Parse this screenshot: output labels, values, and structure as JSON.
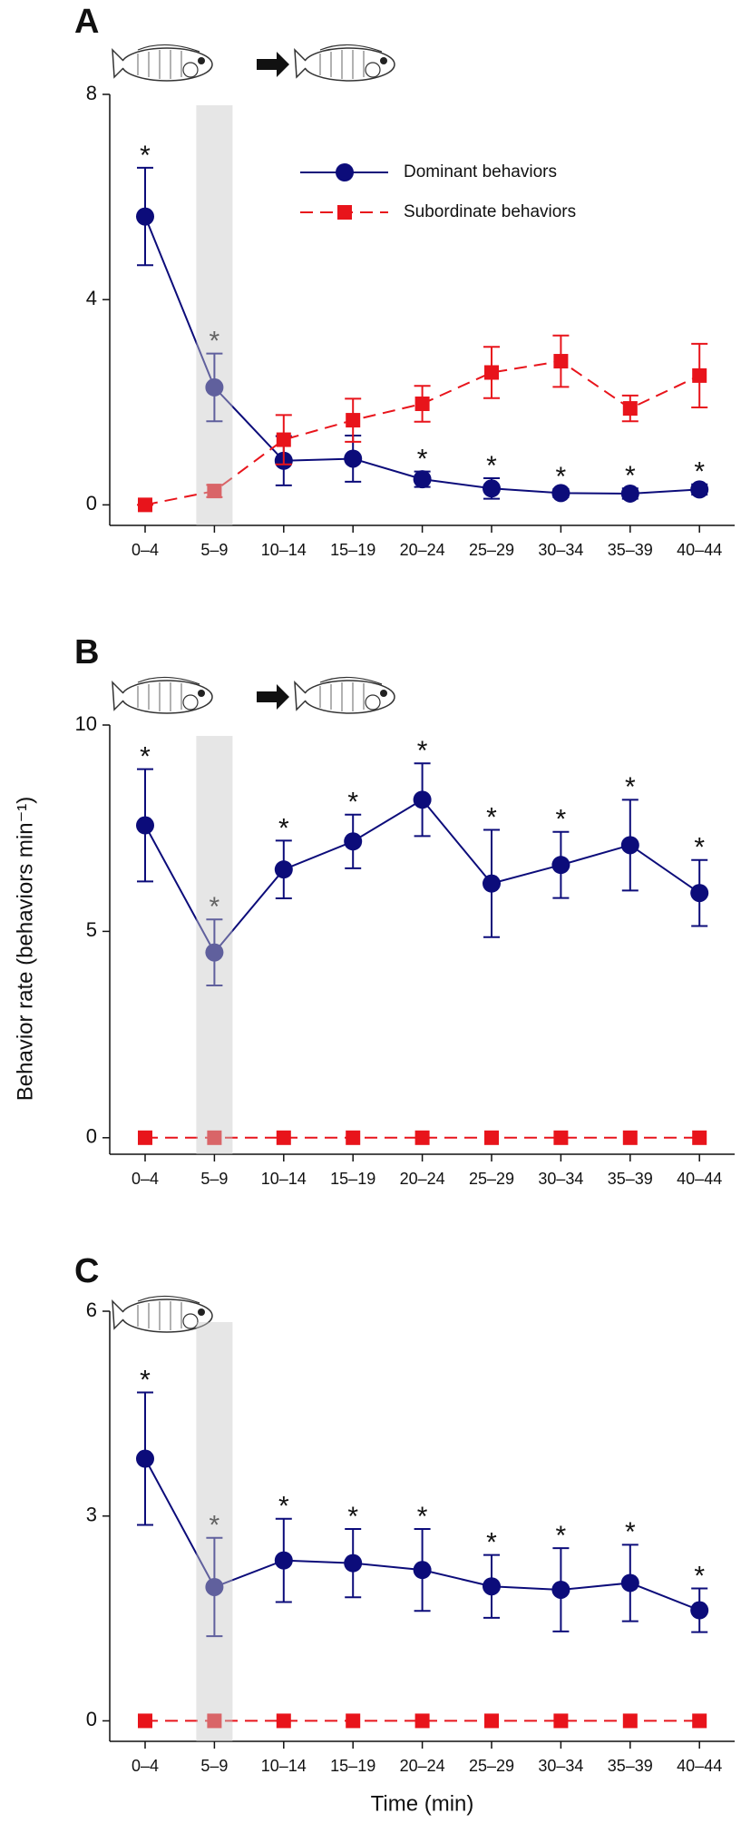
{
  "chart_data": [
    {
      "type": "line",
      "panel": "A",
      "categories": [
        "0–4",
        "5–9",
        "10–14",
        "15–19",
        "20–24",
        "25–29",
        "30–34",
        "35–39",
        "40–44"
      ],
      "shaded_category": 1,
      "ylim": [
        -0.4,
        8
      ],
      "yticks": [
        0,
        4,
        8
      ],
      "legend": "upper right",
      "series": [
        {
          "name": "Dominant behaviors",
          "color": "#0c0c7a",
          "marker": "circle",
          "linestyle": "solid",
          "values": [
            5.62,
            2.29,
            0.86,
            0.9,
            0.5,
            0.32,
            0.23,
            0.22,
            0.3
          ],
          "errors": [
            0.95,
            0.66,
            0.48,
            0.45,
            0.15,
            0.2,
            0.08,
            0.1,
            0.1
          ],
          "significance": [
            "*",
            "*",
            null,
            null,
            "*",
            "*",
            "*",
            "*",
            "*"
          ]
        },
        {
          "name": "Subordinate behaviors",
          "color": "#e8141b",
          "marker": "square",
          "linestyle": "dashed",
          "values": [
            0,
            0.27,
            1.27,
            1.65,
            1.97,
            2.58,
            2.8,
            1.88,
            2.52
          ],
          "errors": [
            0,
            0.12,
            0.48,
            0.42,
            0.35,
            0.5,
            0.5,
            0.25,
            0.62
          ]
        }
      ]
    },
    {
      "type": "line",
      "panel": "B",
      "categories": [
        "0–4",
        "5–9",
        "10–14",
        "15–19",
        "20–24",
        "25–29",
        "30–34",
        "35–39",
        "40–44"
      ],
      "shaded_category": 1,
      "ylim": [
        -0.4,
        10
      ],
      "yticks": [
        0,
        5,
        10
      ],
      "ylabel": "Behavior rate (behaviors min⁻¹)",
      "series": [
        {
          "color": "#0c0c7a",
          "marker": "circle",
          "linestyle": "solid",
          "values": [
            7.57,
            4.49,
            6.5,
            7.18,
            8.19,
            6.16,
            6.61,
            7.09,
            5.93
          ],
          "errors": [
            1.36,
            0.8,
            0.7,
            0.65,
            0.88,
            1.3,
            0.8,
            1.1,
            0.8
          ],
          "significance": [
            "*",
            "*",
            "*",
            "*",
            "*",
            "*",
            "*",
            "*",
            "*"
          ]
        },
        {
          "color": "#e8141b",
          "marker": "square",
          "linestyle": "dashed",
          "values": [
            0,
            0,
            0,
            0,
            0,
            0,
            0,
            0,
            0
          ]
        }
      ]
    },
    {
      "type": "line",
      "panel": "C",
      "categories": [
        "0–4",
        "5–9",
        "10–14",
        "15–19",
        "20–24",
        "25–29",
        "30–34",
        "35–39",
        "40–44"
      ],
      "shaded_category": 1,
      "ylim": [
        -0.3,
        6
      ],
      "yticks": [
        0,
        3,
        6
      ],
      "xlabel": "Time (min)",
      "series": [
        {
          "color": "#0c0c7a",
          "marker": "circle",
          "linestyle": "solid",
          "values": [
            3.84,
            1.96,
            2.35,
            2.31,
            2.21,
            1.97,
            1.92,
            2.02,
            1.62
          ],
          "errors": [
            0.97,
            0.72,
            0.61,
            0.5,
            0.6,
            0.46,
            0.61,
            0.56,
            0.32
          ],
          "significance": [
            "*",
            "*",
            "*",
            "*",
            "*",
            "*",
            "*",
            "*",
            "*"
          ]
        },
        {
          "color": "#e8141b",
          "marker": "square",
          "linestyle": "dashed",
          "values": [
            0,
            0,
            0,
            0,
            0,
            0,
            0,
            0,
            0
          ]
        }
      ]
    }
  ]
}
